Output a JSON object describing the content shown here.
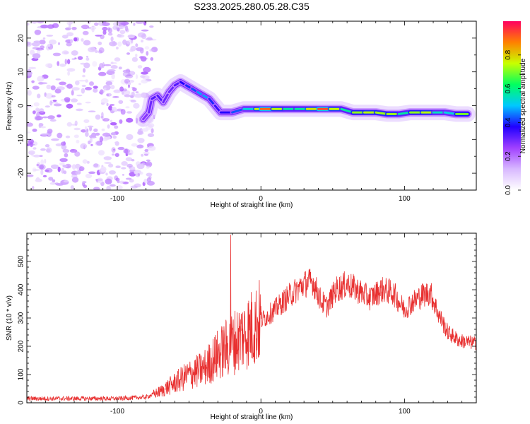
{
  "title": "S233.2025.280.05.28.C35",
  "chart_data": [
    {
      "type": "heatmap",
      "name": "spectrogram",
      "xlabel": "Height of straight line (km)",
      "ylabel": "Frequency (Hz)",
      "xlim": [
        -163,
        150
      ],
      "ylim": [
        -25,
        25
      ],
      "xticks": [
        -100,
        0,
        100
      ],
      "yticks": [
        -20,
        -10,
        0,
        10,
        20
      ],
      "ridge": [
        {
          "x": -82,
          "y": -4,
          "a": 0.25
        },
        {
          "x": -78,
          "y": -2,
          "a": 0.3
        },
        {
          "x": -76,
          "y": 2,
          "a": 0.3
        },
        {
          "x": -72,
          "y": 3,
          "a": 0.35
        },
        {
          "x": -68,
          "y": 1,
          "a": 0.3
        },
        {
          "x": -64,
          "y": 4,
          "a": 0.3
        },
        {
          "x": -60,
          "y": 6,
          "a": 0.3
        },
        {
          "x": -56,
          "y": 7,
          "a": 0.35
        },
        {
          "x": -52,
          "y": 6,
          "a": 0.4
        },
        {
          "x": -48,
          "y": 5,
          "a": 0.4
        },
        {
          "x": -44,
          "y": 4,
          "a": 0.45
        },
        {
          "x": -40,
          "y": 3,
          "a": 0.5
        },
        {
          "x": -36,
          "y": 2,
          "a": 0.45
        },
        {
          "x": -32,
          "y": 0,
          "a": 0.35
        },
        {
          "x": -28,
          "y": -2,
          "a": 0.35
        },
        {
          "x": -20,
          "y": -2,
          "a": 0.4
        },
        {
          "x": -12,
          "y": -1,
          "a": 0.45
        },
        {
          "x": -4,
          "y": -1,
          "a": 0.6
        },
        {
          "x": 0,
          "y": -1,
          "a": 0.92
        },
        {
          "x": 8,
          "y": -1,
          "a": 0.88
        },
        {
          "x": 16,
          "y": -1,
          "a": 0.6
        },
        {
          "x": 24,
          "y": -1,
          "a": 0.55
        },
        {
          "x": 32,
          "y": -1,
          "a": 0.6
        },
        {
          "x": 40,
          "y": -1,
          "a": 0.95
        },
        {
          "x": 48,
          "y": -1,
          "a": 0.9
        },
        {
          "x": 56,
          "y": -1,
          "a": 0.6
        },
        {
          "x": 64,
          "y": -2,
          "a": 0.55
        },
        {
          "x": 72,
          "y": -2,
          "a": 0.88
        },
        {
          "x": 80,
          "y": -2,
          "a": 0.6
        },
        {
          "x": 88,
          "y": -2.5,
          "a": 0.85
        },
        {
          "x": 96,
          "y": -2.5,
          "a": 0.6
        },
        {
          "x": 104,
          "y": -2,
          "a": 0.55
        },
        {
          "x": 112,
          "y": -2,
          "a": 0.88
        },
        {
          "x": 120,
          "y": -2,
          "a": 0.6
        },
        {
          "x": 128,
          "y": -2,
          "a": 0.5
        },
        {
          "x": 136,
          "y": -2.5,
          "a": 0.55
        },
        {
          "x": 144,
          "y": -2.5,
          "a": 0.85
        }
      ],
      "noise_region_x": [
        -163,
        -78
      ]
    },
    {
      "type": "colorbar",
      "name": "amplitude-colorbar",
      "label": "Normalized spectral amplitude",
      "range": [
        0,
        1
      ],
      "ticks": [
        "0.0",
        "0.2",
        "0.4",
        "0.6",
        "0.8"
      ],
      "tick_values": [
        0,
        0.2,
        0.4,
        0.6,
        0.8
      ],
      "colormap": [
        "#ffffff",
        "#d8b8ff",
        "#a040ff",
        "#2000ff",
        "#00c8ff",
        "#00ff60",
        "#c8ff00",
        "#ff8000",
        "#ff0060"
      ]
    },
    {
      "type": "line",
      "name": "snr-line",
      "xlabel": "Height of straight line (km)",
      "ylabel": "SNR (10 * v/v)",
      "xlim": [
        -163,
        150
      ],
      "ylim": [
        0,
        600
      ],
      "xticks": [
        -100,
        0,
        100
      ],
      "yticks": [
        0,
        100,
        200,
        300,
        400,
        500
      ],
      "color": "#e83030",
      "envelope": [
        {
          "x": -163,
          "y": 15
        },
        {
          "x": -100,
          "y": 15
        },
        {
          "x": -80,
          "y": 20
        },
        {
          "x": -70,
          "y": 40
        },
        {
          "x": -60,
          "y": 70
        },
        {
          "x": -50,
          "y": 100
        },
        {
          "x": -40,
          "y": 120
        },
        {
          "x": -30,
          "y": 170
        },
        {
          "x": -20,
          "y": 210
        },
        {
          "x": -10,
          "y": 250
        },
        {
          "x": 0,
          "y": 290
        },
        {
          "x": 10,
          "y": 330
        },
        {
          "x": 20,
          "y": 380
        },
        {
          "x": 30,
          "y": 420
        },
        {
          "x": 36,
          "y": 430
        },
        {
          "x": 42,
          "y": 360
        },
        {
          "x": 46,
          "y": 340
        },
        {
          "x": 52,
          "y": 400
        },
        {
          "x": 60,
          "y": 420
        },
        {
          "x": 70,
          "y": 390
        },
        {
          "x": 76,
          "y": 370
        },
        {
          "x": 84,
          "y": 400
        },
        {
          "x": 92,
          "y": 390
        },
        {
          "x": 100,
          "y": 330
        },
        {
          "x": 104,
          "y": 350
        },
        {
          "x": 112,
          "y": 380
        },
        {
          "x": 118,
          "y": 390
        },
        {
          "x": 124,
          "y": 310
        },
        {
          "x": 130,
          "y": 250
        },
        {
          "x": 138,
          "y": 220
        },
        {
          "x": 150,
          "y": 210
        }
      ],
      "spike": {
        "x": -21,
        "y": 595
      }
    }
  ]
}
